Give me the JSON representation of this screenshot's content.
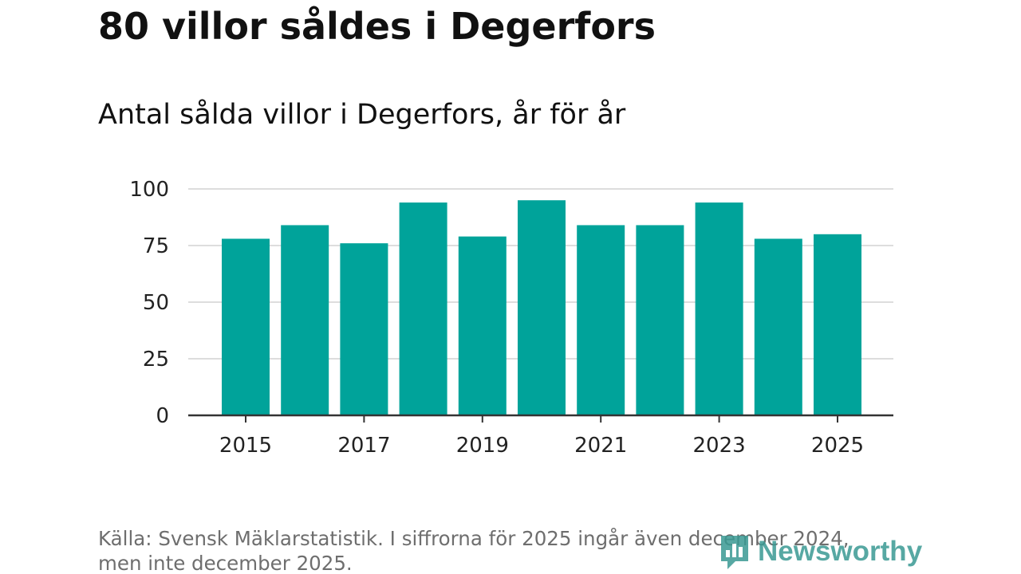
{
  "header": {
    "title": "80 villor såldes i Degerfors",
    "subtitle": "Antal sålda villor i Degerfors, år för år"
  },
  "footer": {
    "source": "Källa: Svensk Mäklarstatistik. I siffrorna för 2025 ingår även december 2024, men inte december 2025.",
    "logo_text": "Newsworthy"
  },
  "colors": {
    "bar": "#00a39a",
    "grid": "#dddddd",
    "axis": "#333333",
    "tick_text": "#222222"
  },
  "chart_data": {
    "type": "bar",
    "title": "80 villor såldes i Degerfors",
    "subtitle": "Antal sålda villor i Degerfors, år för år",
    "xlabel": "",
    "ylabel": "",
    "categories": [
      "2015",
      "2016",
      "2017",
      "2018",
      "2019",
      "2020",
      "2021",
      "2022",
      "2023",
      "2024",
      "2025"
    ],
    "values": [
      78,
      84,
      76,
      94,
      79,
      95,
      84,
      84,
      94,
      78,
      80
    ],
    "x_tick_labels": [
      "2015",
      "2017",
      "2019",
      "2021",
      "2023",
      "2025"
    ],
    "y_ticks": [
      0,
      25,
      50,
      75,
      100
    ],
    "ylim": [
      0,
      100
    ],
    "grid": true
  }
}
